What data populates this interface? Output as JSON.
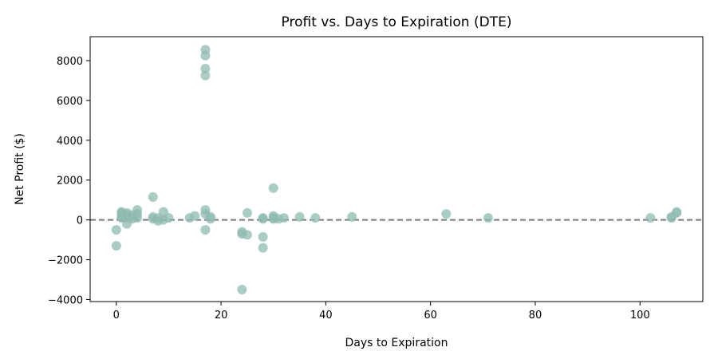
{
  "chart_data": {
    "type": "scatter",
    "title": "Profit vs. Days to Expiration (DTE)",
    "xlabel": "Days to Expiration",
    "ylabel": "Net Profit ($)",
    "xlim": [
      -5,
      112
    ],
    "ylim": [
      -4100,
      9200
    ],
    "xticks": [
      0,
      20,
      40,
      60,
      80,
      100
    ],
    "yticks": [
      -4000,
      -2000,
      0,
      2000,
      4000,
      6000,
      8000
    ],
    "ytick_labels": [
      "−4000",
      "−2000",
      "0",
      "2000",
      "4000",
      "6000",
      "8000"
    ],
    "reference_line": {
      "y": 0,
      "style": "dashed",
      "color": "#7a7a7a"
    },
    "grid": false,
    "marker_color": "#8fbab2",
    "marker_alpha": 0.75,
    "points": [
      {
        "x": 0,
        "y": -500
      },
      {
        "x": 0,
        "y": -1300
      },
      {
        "x": 1,
        "y": 400
      },
      {
        "x": 1,
        "y": 350
      },
      {
        "x": 1,
        "y": 150
      },
      {
        "x": 1,
        "y": 100
      },
      {
        "x": 2,
        "y": 350
      },
      {
        "x": 2,
        "y": 250
      },
      {
        "x": 2,
        "y": 100
      },
      {
        "x": 2,
        "y": -200
      },
      {
        "x": 3,
        "y": 250
      },
      {
        "x": 3,
        "y": 150
      },
      {
        "x": 3,
        "y": 50
      },
      {
        "x": 4,
        "y": 500
      },
      {
        "x": 4,
        "y": 300
      },
      {
        "x": 4,
        "y": 100
      },
      {
        "x": 7,
        "y": 1150
      },
      {
        "x": 7,
        "y": 150
      },
      {
        "x": 7,
        "y": 50
      },
      {
        "x": 8,
        "y": 100
      },
      {
        "x": 8,
        "y": -50
      },
      {
        "x": 9,
        "y": 400
      },
      {
        "x": 9,
        "y": 0
      },
      {
        "x": 10,
        "y": 100
      },
      {
        "x": 14,
        "y": 100
      },
      {
        "x": 15,
        "y": 200
      },
      {
        "x": 17,
        "y": 8550
      },
      {
        "x": 17,
        "y": 8250
      },
      {
        "x": 17,
        "y": 7600
      },
      {
        "x": 17,
        "y": 7250
      },
      {
        "x": 17,
        "y": 500
      },
      {
        "x": 17,
        "y": 300
      },
      {
        "x": 17,
        "y": -500
      },
      {
        "x": 18,
        "y": 150
      },
      {
        "x": 18,
        "y": 50
      },
      {
        "x": 24,
        "y": -600
      },
      {
        "x": 24,
        "y": -700
      },
      {
        "x": 24,
        "y": -3500
      },
      {
        "x": 25,
        "y": 350
      },
      {
        "x": 25,
        "y": -750
      },
      {
        "x": 28,
        "y": 100
      },
      {
        "x": 28,
        "y": 50
      },
      {
        "x": 28,
        "y": -850
      },
      {
        "x": 28,
        "y": -1400
      },
      {
        "x": 30,
        "y": 1600
      },
      {
        "x": 30,
        "y": 200
      },
      {
        "x": 30,
        "y": 100
      },
      {
        "x": 30,
        "y": 50
      },
      {
        "x": 31,
        "y": 50
      },
      {
        "x": 32,
        "y": 100
      },
      {
        "x": 35,
        "y": 150
      },
      {
        "x": 38,
        "y": 100
      },
      {
        "x": 45,
        "y": 150
      },
      {
        "x": 63,
        "y": 300
      },
      {
        "x": 71,
        "y": 100
      },
      {
        "x": 102,
        "y": 100
      },
      {
        "x": 106,
        "y": 150
      },
      {
        "x": 106,
        "y": 100
      },
      {
        "x": 107,
        "y": 400
      },
      {
        "x": 107,
        "y": 350
      }
    ]
  }
}
